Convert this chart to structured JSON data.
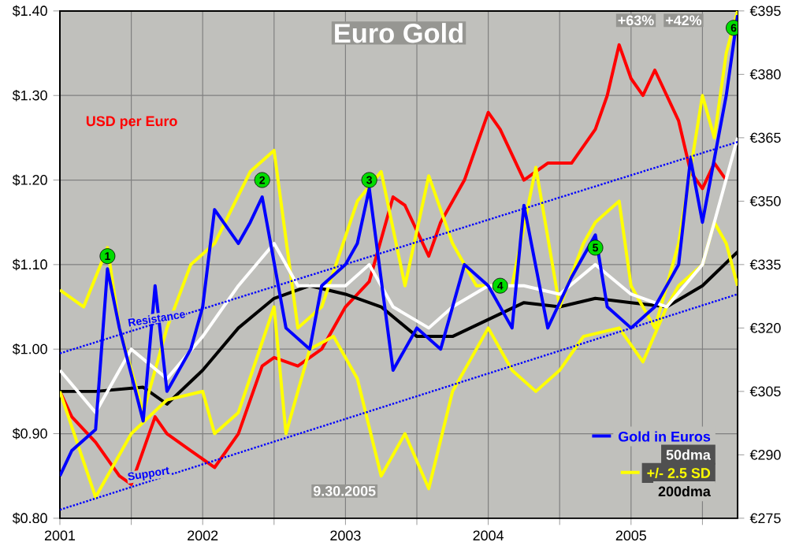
{
  "chart_data": {
    "type": "line",
    "title": "Euro Gold",
    "xlim": [
      "2001-01-01",
      "2005-09-30"
    ],
    "xticks": [
      {
        "value": "2001-01-01",
        "label": "2001"
      },
      {
        "value": "2001-07-01",
        "label": null
      },
      {
        "value": "2002-01-01",
        "label": "2002"
      },
      {
        "value": "2002-07-01",
        "label": null
      },
      {
        "value": "2003-01-01",
        "label": "2003"
      },
      {
        "value": "2003-07-01",
        "label": null
      },
      {
        "value": "2004-01-01",
        "label": "2004"
      },
      {
        "value": "2004-07-01",
        "label": null
      },
      {
        "value": "2005-01-01",
        "label": "2005"
      },
      {
        "value": "2005-07-01",
        "label": null
      }
    ],
    "ylim": [
      0.8,
      1.4
    ],
    "yticks": [
      {
        "value": 0.8,
        "label": "$0.80"
      },
      {
        "value": 0.9,
        "label": "$0.90"
      },
      {
        "value": 1.0,
        "label": "$1.00"
      },
      {
        "value": 1.1,
        "label": "$1.10"
      },
      {
        "value": 1.2,
        "label": "$1.20"
      },
      {
        "value": 1.3,
        "label": "$1.30"
      },
      {
        "value": 1.4,
        "label": "$1.40"
      }
    ],
    "y2lim": [
      275,
      395
    ],
    "y2ticks": [
      {
        "value": 275,
        "label": "€275"
      },
      {
        "value": 290,
        "label": "€290"
      },
      {
        "value": 305,
        "label": "€305"
      },
      {
        "value": 320,
        "label": "€320"
      },
      {
        "value": 335,
        "label": "€335"
      },
      {
        "value": 350,
        "label": "€350"
      },
      {
        "value": 365,
        "label": "€365"
      },
      {
        "value": 380,
        "label": "€380"
      },
      {
        "value": 395,
        "label": "€395"
      }
    ],
    "grid": true,
    "legend": "bottom right",
    "series": [
      {
        "name": "USD per Euro",
        "color": "#ff0000",
        "axis": "y",
        "x": [
          "2001-01",
          "2001-02",
          "2001-04",
          "2001-06",
          "2001-07",
          "2001-09",
          "2001-10",
          "2001-12",
          "2002-02",
          "2002-04",
          "2002-06",
          "2002-07",
          "2002-09",
          "2002-11",
          "2003-01",
          "2003-03",
          "2003-05",
          "2003-06",
          "2003-08",
          "2003-09",
          "2003-11",
          "2004-01",
          "2004-02",
          "2004-04",
          "2004-06",
          "2004-08",
          "2004-10",
          "2004-11",
          "2004-12",
          "2005-01",
          "2005-02",
          "2005-03",
          "2005-05",
          "2005-06",
          "2005-07",
          "2005-08",
          "2005-09"
        ],
        "values": [
          0.95,
          0.92,
          0.89,
          0.85,
          0.84,
          0.92,
          0.9,
          0.88,
          0.86,
          0.9,
          0.98,
          0.99,
          0.98,
          1.0,
          1.05,
          1.08,
          1.18,
          1.17,
          1.11,
          1.15,
          1.2,
          1.28,
          1.26,
          1.2,
          1.22,
          1.22,
          1.26,
          1.3,
          1.36,
          1.32,
          1.3,
          1.33,
          1.27,
          1.21,
          1.19,
          1.22,
          1.2
        ]
      },
      {
        "name": "200dma",
        "color": "#000000",
        "axis": "y2",
        "x": [
          "2001-01",
          "2001-04",
          "2001-08",
          "2001-10",
          "2002-01",
          "2002-04",
          "2002-07",
          "2002-10",
          "2003-01",
          "2003-04",
          "2003-07",
          "2003-10",
          "2004-01",
          "2004-04",
          "2004-07",
          "2004-10",
          "2005-01",
          "2005-04",
          "2005-07",
          "2005-09-30"
        ],
        "values": [
          305,
          305,
          306,
          302,
          310,
          320,
          327,
          330,
          328,
          325,
          318,
          318,
          322,
          326,
          325,
          327,
          326,
          325,
          330,
          338
        ]
      },
      {
        "color": "#ffff00",
        "axis": "y2",
        "x": [
          "2001-01",
          "2001-04",
          "2001-07",
          "2001-10",
          "2002-01",
          "2002-02",
          "2002-04",
          "2002-07",
          "2002-08",
          "2002-10",
          "2002-12",
          "2003-02",
          "2003-04",
          "2003-06",
          "2003-08",
          "2003-10",
          "2004-01",
          "2004-03",
          "2004-05",
          "2004-07",
          "2004-09",
          "2004-12",
          "2005-02",
          "2005-04",
          "2005-05",
          "2005-07",
          "2005-08",
          "2005-09",
          "2005-09-30"
        ],
        "values": [
          305,
          280,
          295,
          303,
          305,
          295,
          300,
          325,
          295,
          315,
          318,
          308,
          285,
          295,
          282,
          305,
          320,
          310,
          305,
          310,
          318,
          320,
          312,
          325,
          330,
          335,
          345,
          340,
          330
        ]
      },
      {
        "name": "+/- 2.5 SD",
        "color": "#ffff00",
        "axis": "y2",
        "x": [
          "2001-01",
          "2001-03",
          "2001-05",
          "2001-06",
          "2001-08",
          "2001-10",
          "2001-12",
          "2002-02",
          "2002-05",
          "2002-07",
          "2002-09",
          "2002-11",
          "2003-02",
          "2003-04",
          "2003-06",
          "2003-08",
          "2003-10",
          "2003-12",
          "2004-03",
          "2004-05",
          "2004-07",
          "2004-09",
          "2004-10",
          "2004-12",
          "2005-01",
          "2005-03",
          "2005-05",
          "2005-07",
          "2005-08",
          "2005-09",
          "2005-09-30"
        ],
        "values": [
          329,
          325,
          339,
          320,
          300,
          320,
          335,
          340,
          357,
          362,
          320,
          325,
          350,
          357,
          330,
          356,
          340,
          330,
          330,
          358,
          325,
          340,
          345,
          350,
          330,
          320,
          340,
          375,
          365,
          385,
          395
        ]
      },
      {
        "name": "50dma",
        "color": "#ffffff",
        "axis": "y2",
        "x": [
          "2001-01",
          "2001-04",
          "2001-07",
          "2001-10",
          "2002-01",
          "2002-04",
          "2002-07",
          "2002-09",
          "2003-01",
          "2003-03",
          "2003-05",
          "2003-08",
          "2003-10",
          "2004-01",
          "2004-04",
          "2004-07",
          "2004-10",
          "2005-01",
          "2005-04",
          "2005-07",
          "2005-08",
          "2005-09-30"
        ],
        "values": [
          310,
          300,
          315,
          308,
          318,
          330,
          340,
          330,
          330,
          335,
          325,
          320,
          325,
          330,
          330,
          328,
          335,
          328,
          325,
          335,
          345,
          365
        ]
      },
      {
        "name": "Gold in Euros",
        "color": "#0000ff",
        "axis": "y2",
        "x": [
          "2001-01",
          "2001-02",
          "2001-04",
          "2001-05",
          "2001-06",
          "2001-08",
          "2001-09",
          "2001-10",
          "2001-12",
          "2002-01",
          "2002-02",
          "2002-04",
          "2002-05",
          "2002-06",
          "2002-08",
          "2002-10",
          "2002-11",
          "2003-01",
          "2003-02",
          "2003-03",
          "2003-05",
          "2003-07",
          "2003-09",
          "2003-11",
          "2004-01",
          "2004-03",
          "2004-04",
          "2004-06",
          "2004-08",
          "2004-10",
          "2004-11",
          "2005-01",
          "2005-03",
          "2005-05",
          "2005-06",
          "2005-07",
          "2005-08",
          "2005-09",
          "2005-09-30"
        ],
        "values": [
          285,
          291,
          296,
          334,
          320,
          298,
          330,
          305,
          315,
          325,
          348,
          340,
          345,
          351,
          320,
          315,
          330,
          335,
          340,
          353,
          310,
          320,
          315,
          335,
          330,
          320,
          349,
          320,
          332,
          342,
          325,
          320,
          325,
          335,
          360,
          345,
          360,
          375,
          394
        ]
      },
      {
        "name": "Resistance",
        "color": "#0000ff",
        "axis": "y2",
        "line_style": "dotted",
        "x": [
          "2001-01-01",
          "2005-09-30"
        ],
        "values": [
          314,
          364
        ]
      },
      {
        "name": "Support",
        "color": "#0000ff",
        "axis": "y2",
        "line_style": "dotted",
        "x": [
          "2001-01-01",
          "2005-09-30"
        ],
        "values": [
          277,
          328
        ]
      }
    ],
    "annotations": [
      {
        "text": "1",
        "x": "2001-05",
        "y": 1.11
      },
      {
        "text": "2",
        "x": "2002-06",
        "y": 1.2
      },
      {
        "text": "3",
        "x": "2003-03",
        "y": 1.2
      },
      {
        "text": "4",
        "x": "2004-02",
        "y": 1.075
      },
      {
        "text": "5",
        "x": "2004-10",
        "y": 1.12
      },
      {
        "text": "6",
        "x": "2005-09-20",
        "y": 1.38
      },
      "+63%",
      "+42%",
      "9.30.2005"
    ]
  }
}
